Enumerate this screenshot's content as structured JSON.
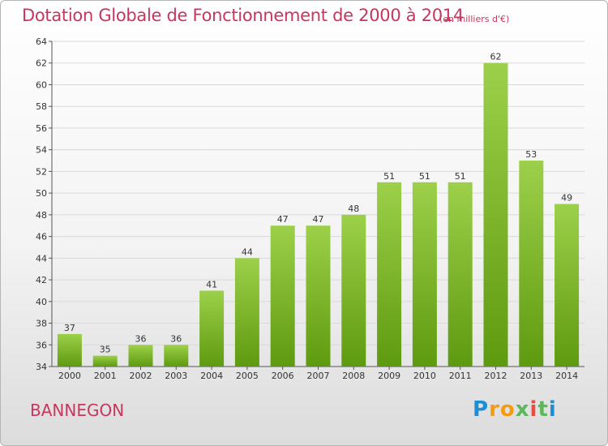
{
  "title": "Dotation Globale de Fonctionnement de 2000 à 2014",
  "subtitle": "(en milliers d'€)",
  "commune": "BANNEGON",
  "logo": {
    "letters": [
      "P",
      "r",
      "o",
      "x",
      "i",
      "t",
      "i"
    ],
    "colors": [
      "#1a8fd6",
      "#f39c12",
      "#f39c12",
      "#5cb85c",
      "#e74c3c",
      "#5cb85c",
      "#1a8fd6"
    ]
  },
  "chart_data": {
    "type": "bar",
    "categories": [
      "2000",
      "2001",
      "2002",
      "2003",
      "2004",
      "2005",
      "2006",
      "2007",
      "2008",
      "2009",
      "2010",
      "2011",
      "2012",
      "2013",
      "2014"
    ],
    "values": [
      37,
      35,
      36,
      36,
      41,
      44,
      47,
      47,
      48,
      51,
      51,
      51,
      62,
      53,
      49
    ],
    "ylim": [
      34,
      64
    ],
    "yticks": [
      34,
      36,
      38,
      40,
      42,
      44,
      46,
      48,
      50,
      52,
      54,
      56,
      58,
      60,
      62,
      64
    ],
    "grid": true,
    "colors": {
      "bar_top": "#9dd04a",
      "bar_bottom": "#5e9a10",
      "grid": "#d9d9d9"
    }
  }
}
